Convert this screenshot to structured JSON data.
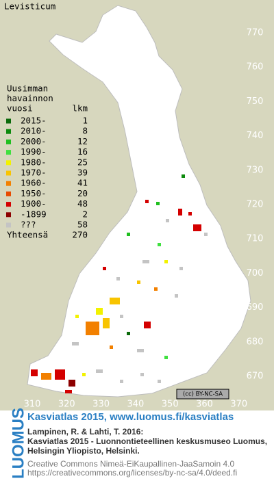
{
  "title": "Levisticum",
  "y_labels": [
    770,
    760,
    750,
    740,
    730,
    720,
    710,
    700,
    690,
    680,
    670
  ],
  "x_labels": [
    310,
    320,
    330,
    340,
    350,
    360,
    370
  ],
  "legend": {
    "heading": [
      "Uusimman",
      "havainnon",
      "vuosi"
    ],
    "count_heading": "lkm",
    "rows": [
      {
        "label": "2015-",
        "count": 1,
        "color": "#0b6a0b"
      },
      {
        "label": "2010-",
        "count": 8,
        "color": "#0d8a0d"
      },
      {
        "label": "2000-",
        "count": 12,
        "color": "#1fbf1f"
      },
      {
        "label": "1990-",
        "count": 16,
        "color": "#3fe03f"
      },
      {
        "label": "1980-",
        "count": 25,
        "color": "#f2f200"
      },
      {
        "label": "1970-",
        "count": 39,
        "color": "#f8c400"
      },
      {
        "label": "1960-",
        "count": 41,
        "color": "#f28000"
      },
      {
        "label": "1950-",
        "count": 20,
        "color": "#e84a00"
      },
      {
        "label": "1900-",
        "count": 48,
        "color": "#d40000"
      },
      {
        "label": "-1899",
        "count": 2,
        "color": "#8c0000"
      },
      {
        "label": "???",
        "count": 58,
        "color": "#c4c4c4"
      }
    ],
    "total_label": "Yhteensä",
    "total": 270
  },
  "license_badge": "(cc) BY-NC-SA",
  "logo": "LUOMUS",
  "footer": {
    "link": "Kasviatlas 2015, www.luomus.fi/kasviatlas",
    "citation": [
      "Lampinen, R. & Lahti, T. 2016:",
      "Kasviatlas 2015 - Luonnontieteellinen keskusmuseo Luomus,",
      "Helsingin Yliopisto, Helsinki."
    ],
    "license": [
      "Creative Commons Nimeä-EiKaupallinen-JaaSamoin 4.0",
      "https://creativecommons.org/licenses/by-nc-sa/4.0/deed.fi"
    ]
  }
}
